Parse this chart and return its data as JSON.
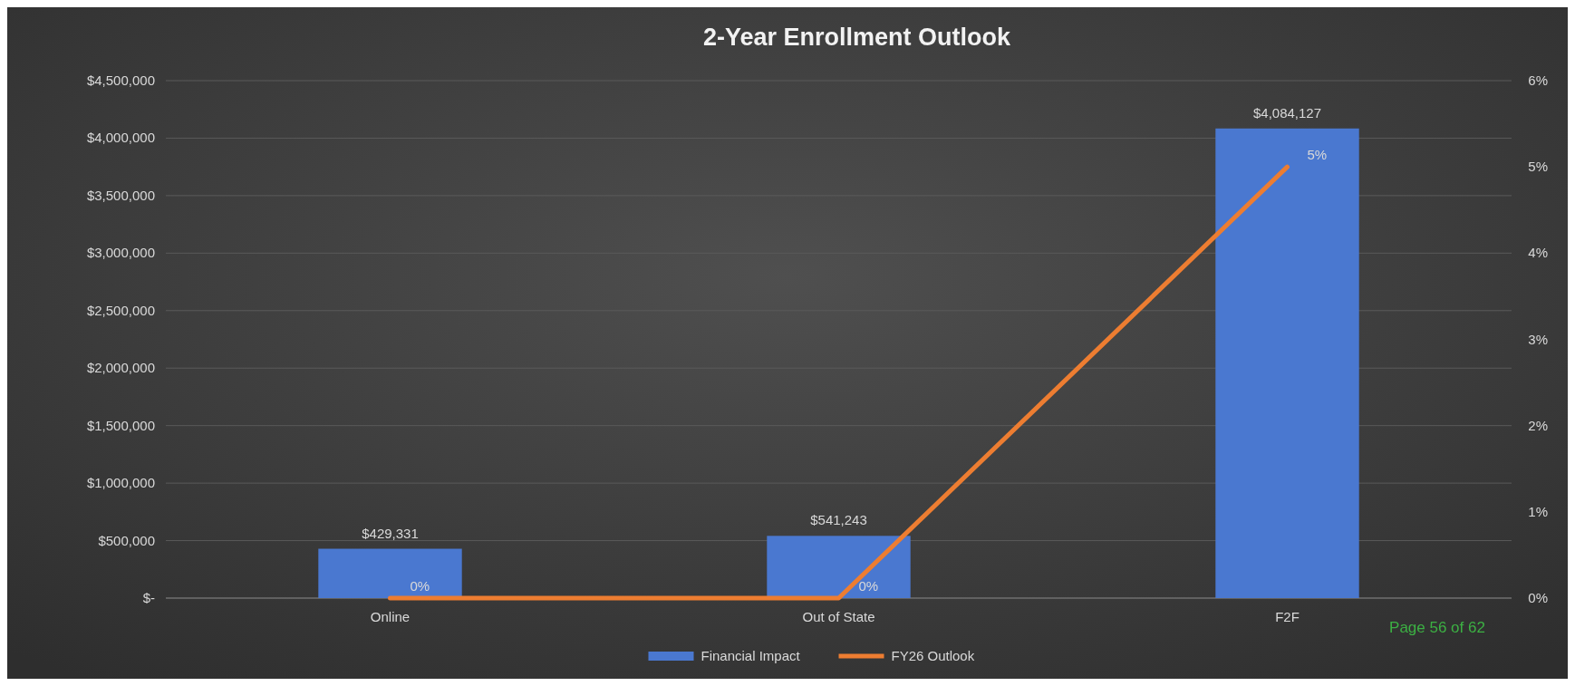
{
  "chart_data": {
    "type": "bar",
    "title": "2-Year Enrollment Outlook",
    "categories": [
      "Online",
      "Out of State",
      "F2F"
    ],
    "series": [
      {
        "name": "Financial Impact",
        "color": "#4a78d0",
        "values": [
          429331,
          541243,
          4084127
        ],
        "value_labels": [
          "$429,331",
          "$541,243",
          "$4,084,127"
        ]
      },
      {
        "name": "FY26 Outlook",
        "type": "line",
        "axis": "y2",
        "color": "#ed7d31",
        "values": [
          0,
          0,
          5
        ],
        "value_labels": [
          "0%",
          "0%",
          "5%"
        ]
      }
    ],
    "ylim": [
      0,
      4500000
    ],
    "yticks": [
      {
        "value": 0,
        "label": "$-"
      },
      {
        "value": 500000,
        "label": "$500,000"
      },
      {
        "value": 1000000,
        "label": "$1,000,000"
      },
      {
        "value": 1500000,
        "label": "$1,500,000"
      },
      {
        "value": 2000000,
        "label": "$2,000,000"
      },
      {
        "value": 2500000,
        "label": "$2,500,000"
      },
      {
        "value": 3000000,
        "label": "$3,000,000"
      },
      {
        "value": 3500000,
        "label": "$3,500,000"
      },
      {
        "value": 4000000,
        "label": "$4,000,000"
      },
      {
        "value": 4500000,
        "label": "$4,500,000"
      }
    ],
    "y2lim": [
      0,
      6
    ],
    "y2ticks": [
      {
        "value": 0,
        "label": "0%"
      },
      {
        "value": 1,
        "label": "1%"
      },
      {
        "value": 2,
        "label": "2%"
      },
      {
        "value": 3,
        "label": "3%"
      },
      {
        "value": 4,
        "label": "4%"
      },
      {
        "value": 5,
        "label": "5%"
      },
      {
        "value": 6,
        "label": "6%"
      }
    ],
    "grid": "y",
    "legend": "bottom",
    "marker": "none",
    "line_style": "solid",
    "annotations": [
      "Page 56 of 62"
    ]
  }
}
